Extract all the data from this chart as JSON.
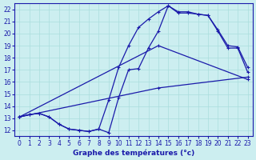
{
  "background_color": "#cceef0",
  "grid_color": "#aadddd",
  "line_color": "#1a1aaa",
  "xlabel": "Graphe des températures (°c)",
  "xlim": [
    -0.5,
    23.5
  ],
  "ylim": [
    11.5,
    22.5
  ],
  "yticks": [
    12,
    13,
    14,
    15,
    16,
    17,
    18,
    19,
    20,
    21,
    22
  ],
  "xticks": [
    0,
    1,
    2,
    3,
    4,
    5,
    6,
    7,
    8,
    9,
    10,
    11,
    12,
    13,
    14,
    15,
    16,
    17,
    18,
    19,
    20,
    21,
    22,
    23
  ],
  "line1_x": [
    0,
    1,
    2,
    3,
    4,
    5,
    6,
    7,
    8,
    9,
    10,
    11,
    12,
    13,
    14,
    15,
    16,
    17,
    18,
    19,
    20,
    21,
    22,
    23
  ],
  "line1_y": [
    13.1,
    13.3,
    13.4,
    13.1,
    12.5,
    12.1,
    12.0,
    11.9,
    12.1,
    14.5,
    17.2,
    19.0,
    20.5,
    21.2,
    21.8,
    22.3,
    21.7,
    21.7,
    21.6,
    21.5,
    20.2,
    18.8,
    18.8,
    16.8
  ],
  "line2_x": [
    0,
    1,
    2,
    3,
    4,
    5,
    6,
    7,
    8,
    9,
    10,
    11,
    12,
    13,
    14,
    15,
    16,
    17,
    18,
    19,
    20,
    21,
    22,
    23
  ],
  "line2_y": [
    13.1,
    13.3,
    13.4,
    13.1,
    12.5,
    12.1,
    12.0,
    11.9,
    12.1,
    11.8,
    14.7,
    17.0,
    17.1,
    18.8,
    20.2,
    22.3,
    21.8,
    21.8,
    21.6,
    21.5,
    20.3,
    19.0,
    18.9,
    17.2
  ],
  "line3_x": [
    0,
    14,
    23
  ],
  "line3_y": [
    13.1,
    19.0,
    16.2
  ],
  "line4_x": [
    0,
    14,
    23
  ],
  "line4_y": [
    13.1,
    15.5,
    16.4
  ],
  "marker": "+",
  "markersize": 3,
  "linewidth": 0.9
}
